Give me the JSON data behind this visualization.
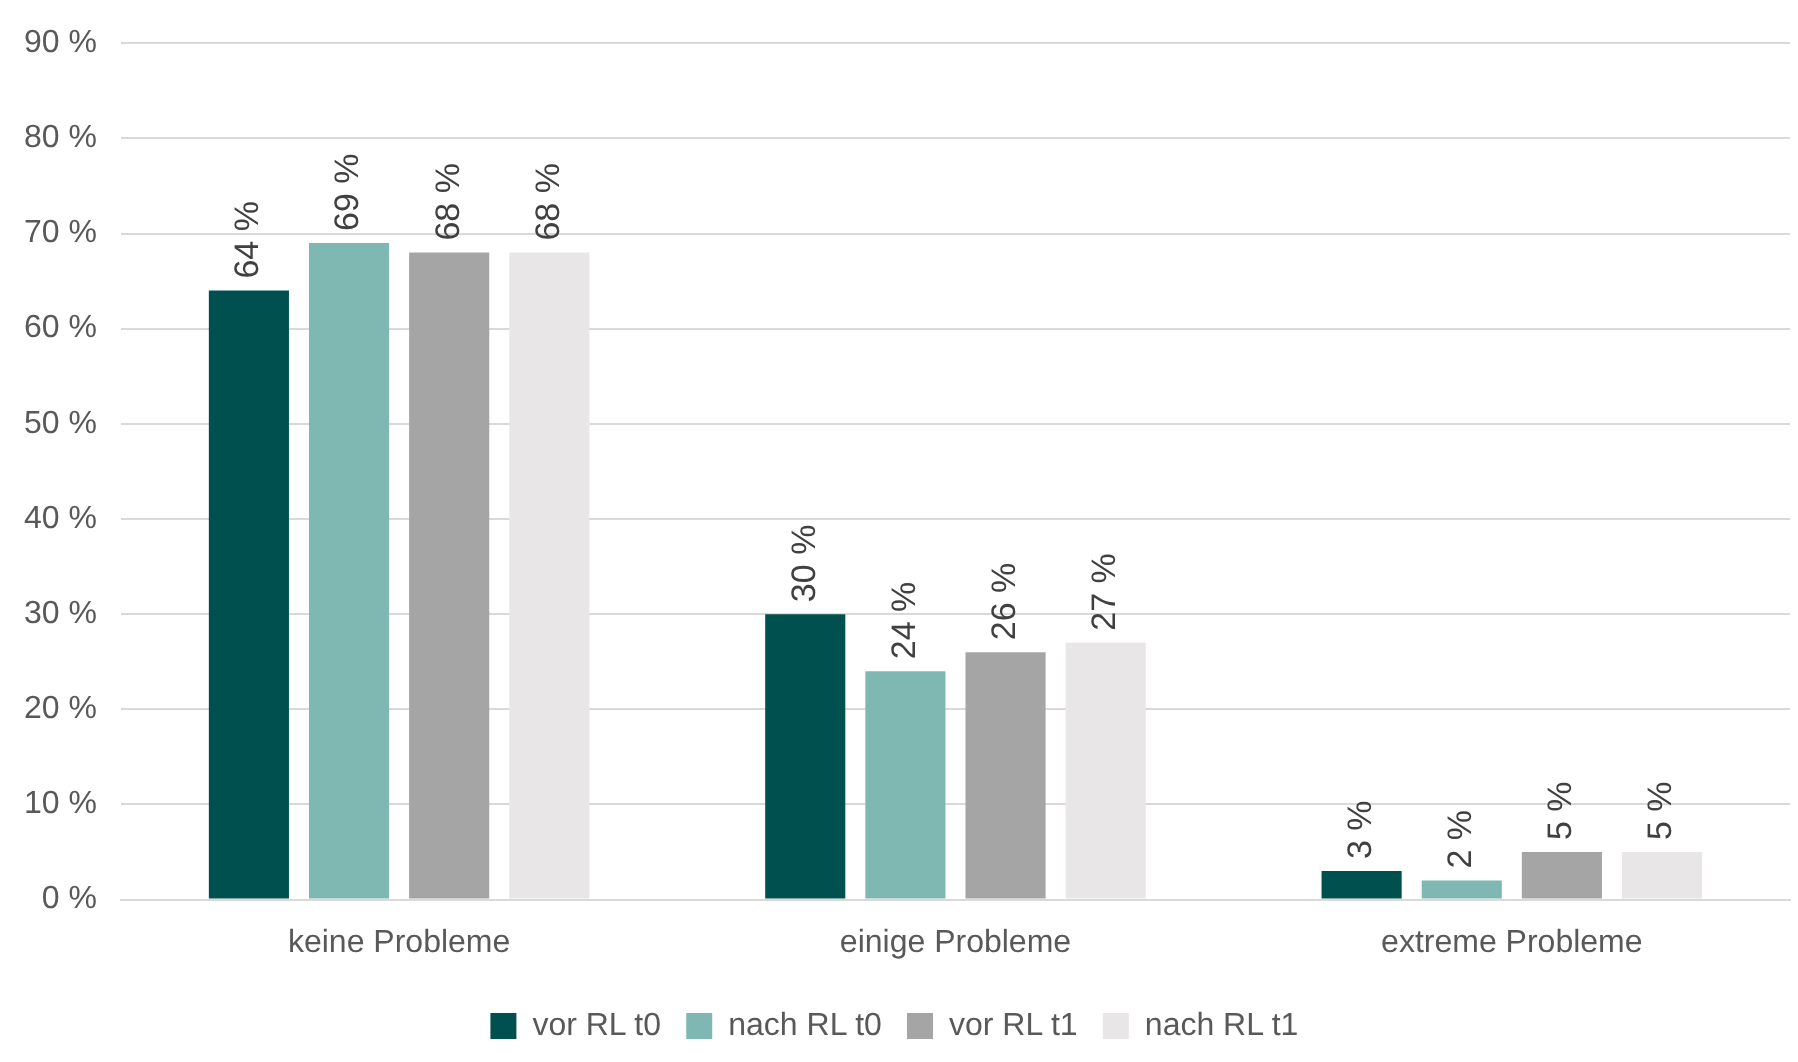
{
  "chart_data": {
    "type": "bar",
    "categories": [
      "keine Probleme",
      "einige Probleme",
      "extreme Probleme"
    ],
    "series": [
      {
        "name": "vor RL t0",
        "color": "#00504f",
        "values": [
          64,
          30,
          3
        ],
        "value_labels": [
          "64 %",
          "30 %",
          "3 %"
        ]
      },
      {
        "name": "nach RL t0",
        "color": "#7fb8b2",
        "values": [
          69,
          24,
          2
        ],
        "value_labels": [
          "69 %",
          "24 %",
          "2 %"
        ]
      },
      {
        "name": "vor RL t1",
        "color": "#a5a5a5",
        "values": [
          68,
          26,
          5
        ],
        "value_labels": [
          "68 %",
          "26 %",
          "5 %"
        ]
      },
      {
        "name": "nach RL t1",
        "color": "#e8e6e6",
        "values": [
          68,
          27,
          5
        ],
        "value_labels": [
          "68 %",
          "27 %",
          "5 %"
        ]
      }
    ],
    "ylim": [
      0,
      90
    ],
    "yticks": [
      {
        "value": 0,
        "label": "0 %"
      },
      {
        "value": 10,
        "label": "10 %"
      },
      {
        "value": 20,
        "label": "20 %"
      },
      {
        "value": 30,
        "label": "30 %"
      },
      {
        "value": 40,
        "label": "40 %"
      },
      {
        "value": 50,
        "label": "50 %"
      },
      {
        "value": 60,
        "label": "60 %"
      },
      {
        "value": 70,
        "label": "70 %"
      },
      {
        "value": 80,
        "label": "80 %"
      },
      {
        "value": 90,
        "label": "90 %"
      }
    ],
    "grid": "y",
    "legend": "bottom"
  }
}
